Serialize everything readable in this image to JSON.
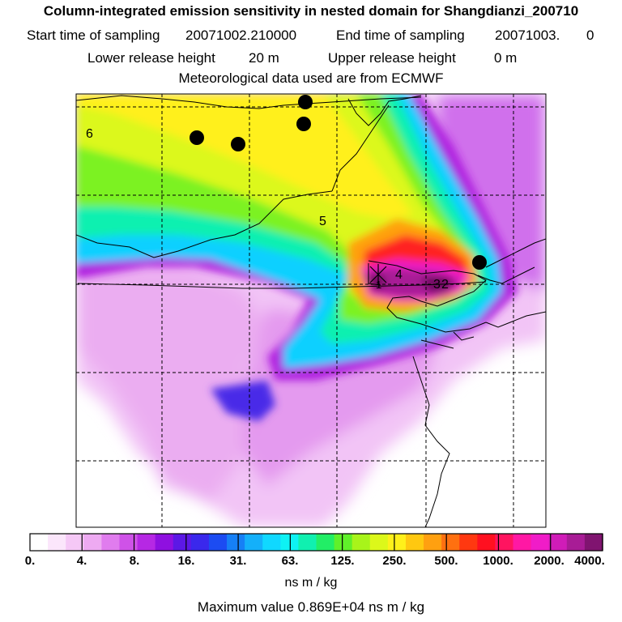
{
  "header": {
    "title": "Column-integrated emission sensitivity in nested domain for Shangdianzi_200710",
    "start_label": "Start time of sampling",
    "start_value": "20071002.210000",
    "end_label": "End time of sampling",
    "end_value": "20071003.",
    "end_suffix": "0",
    "lower_label": "Lower release height",
    "lower_value": "20 m",
    "upper_label": "Upper release height",
    "upper_value": "0 m",
    "met_text": "Meteorological data used are from ECMWF"
  },
  "map": {
    "markers": [
      "6",
      "5",
      "4",
      "3",
      "2",
      "1"
    ]
  },
  "colorbar": {
    "tick_labels": [
      "0.",
      "4.",
      "8.",
      "16.",
      "31.",
      "63.",
      "125.",
      "250.",
      "500.",
      "1000.",
      "2000.",
      "4000."
    ],
    "colors": [
      "#ffffff",
      "#fbe6fb",
      "#f5c8f6",
      "#eeaaf2",
      "#e07cee",
      "#cf52e8",
      "#b628e4",
      "#8f10e0",
      "#5c18e6",
      "#3a28ec",
      "#1c4cf2",
      "#1680f6",
      "#14b0fa",
      "#10d8ff",
      "#0ef2f4",
      "#10f0b0",
      "#22ee66",
      "#60f02a",
      "#a8f41a",
      "#dcf81a",
      "#fff01a",
      "#ffc810",
      "#ffa010",
      "#ff7010",
      "#ff3810",
      "#ff1020",
      "#ff1460",
      "#ff18a4",
      "#f01cc8",
      "#d01cb8",
      "#a81c96",
      "#801470"
    ],
    "units": "ns m / kg"
  },
  "max_value": "Maximum value  0.869E+04 ns m / kg"
}
